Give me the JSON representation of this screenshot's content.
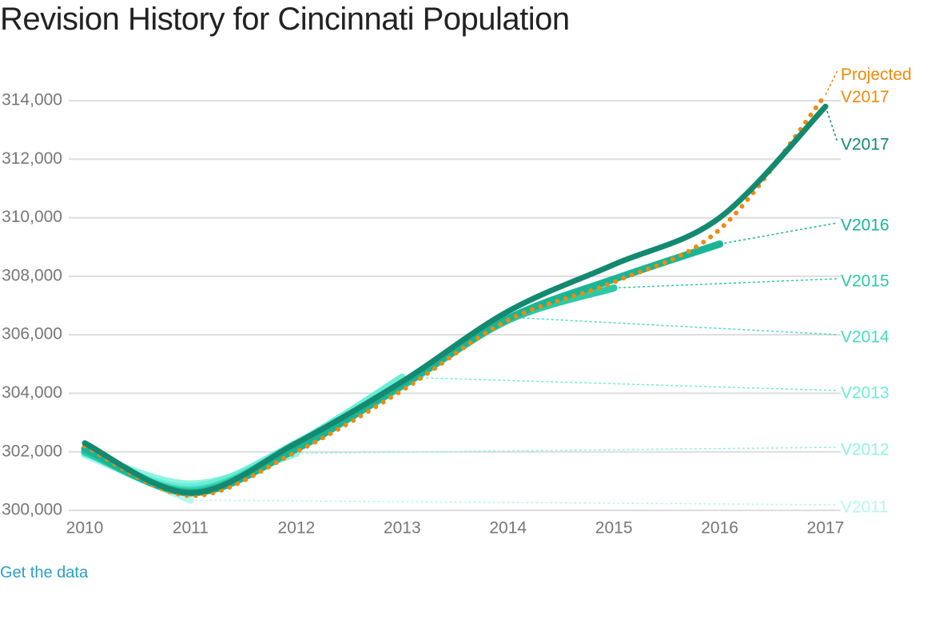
{
  "chart_data": {
    "type": "line",
    "title": "Revision History for Cincinnati Population",
    "x": [
      2010,
      2011,
      2012,
      2013,
      2014,
      2015,
      2016,
      2017
    ],
    "xlim": [
      2010,
      2017
    ],
    "xticks": [
      2010,
      2011,
      2012,
      2013,
      2014,
      2015,
      2016,
      2017
    ],
    "ylim": [
      300000,
      314000
    ],
    "yticks": [
      {
        "value": 300000,
        "label": "300,000"
      },
      {
        "value": 302000,
        "label": "302,000"
      },
      {
        "value": 304000,
        "label": "304,000"
      },
      {
        "value": 306000,
        "label": "306,000"
      },
      {
        "value": 308000,
        "label": "308,000"
      },
      {
        "value": 310000,
        "label": "310,000"
      },
      {
        "value": 312000,
        "label": "312,000"
      },
      {
        "value": 314000,
        "label": "314,000"
      }
    ],
    "grid": true,
    "series": [
      {
        "name": "V2011",
        "color": "#b5f7ee",
        "values": [
          301900,
          300350,
          null,
          null,
          null,
          null,
          null,
          null
        ]
      },
      {
        "name": "V2012",
        "color": "#8ff3e1",
        "values": [
          302000,
          300900,
          301950,
          null,
          null,
          null,
          null,
          null
        ]
      },
      {
        "name": "V2013",
        "color": "#6aeed6",
        "values": [
          301950,
          300800,
          302300,
          304550,
          null,
          null,
          null,
          null
        ]
      },
      {
        "name": "V2014",
        "color": "#48dcbf",
        "values": [
          302000,
          300700,
          302200,
          304300,
          306600,
          null,
          null,
          null
        ]
      },
      {
        "name": "V2015",
        "color": "#2cc9a8",
        "values": [
          302000,
          300650,
          302150,
          304250,
          306500,
          307600,
          null,
          null
        ]
      },
      {
        "name": "V2016",
        "color": "#19b596",
        "values": [
          302100,
          300600,
          302100,
          304300,
          306550,
          307900,
          309100,
          null
        ]
      },
      {
        "name": "Projected V2017",
        "color": "#f08a0a",
        "dotted": true,
        "values": [
          302200,
          300500,
          302000,
          304100,
          306500,
          307800,
          309600,
          314200
        ]
      },
      {
        "name": "V2017",
        "color": "#138a70",
        "values": [
          302300,
          300600,
          302300,
          304400,
          306800,
          308400,
          310000,
          313800
        ]
      }
    ],
    "link": "Get the data"
  }
}
